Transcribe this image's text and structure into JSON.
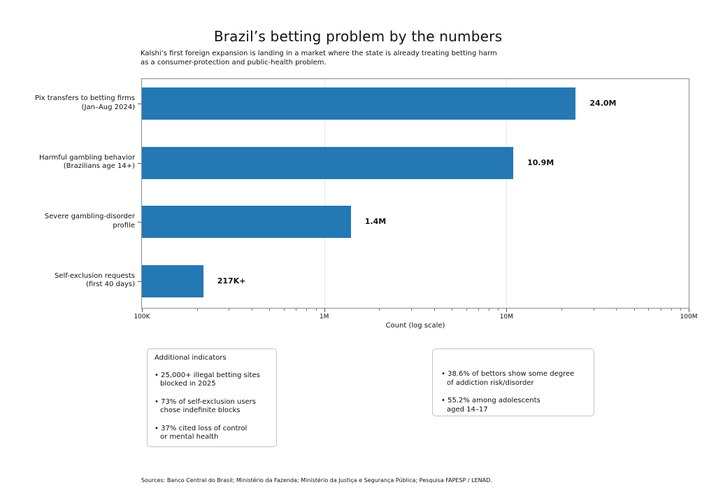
{
  "chart_data": {
    "type": "bar",
    "orientation": "horizontal",
    "x_scale": "log",
    "title": "Brazil’s betting problem by the numbers",
    "subtitle_lines": [
      "Kalshi’s first foreign expansion is landing in a market where the state is already treating betting harm",
      "as a consumer-protection and public-health problem."
    ],
    "xlabel": "Count (log scale)",
    "xlim": [
      100000,
      100000000
    ],
    "x_tick_values": [
      100000,
      1000000,
      10000000,
      100000000
    ],
    "x_tick_labels": [
      "100K",
      "1M",
      "10M",
      "100M"
    ],
    "grid": "major-x",
    "bar_color": "#2478b4",
    "categories": [
      "Pix transfers to betting firms (Jan–Aug 2024)",
      "Harmful gambling behavior (Brazilians age 14+)",
      "Severe gambling-disorder profile",
      "Self-exclusion requests (first 40 days)"
    ],
    "category_lines": [
      [
        "Pix transfers to betting firms",
        "(Jan–Aug 2024)"
      ],
      [
        "Harmful gambling behavior",
        "(Brazilians age 14+)"
      ],
      [
        "Severe gambling-disorder",
        "profile"
      ],
      [
        "Self-exclusion requests",
        "(first 40 days)"
      ]
    ],
    "values": [
      24000000,
      10900000,
      1400000,
      217000
    ],
    "value_labels": [
      "24.0M",
      "10.9M",
      "1.4M",
      "217K+"
    ]
  },
  "annotations": {
    "left_box": {
      "title": "Additional indicators",
      "bullets": [
        {
          "lines": [
            "25,000+ illegal betting sites",
            "blocked in 2025"
          ]
        },
        {
          "lines": [
            "73% of self-exclusion users",
            "chose indefinite blocks"
          ]
        },
        {
          "lines": [
            "37% cited loss of control",
            "or mental health"
          ]
        }
      ]
    },
    "right_box": {
      "bullets": [
        {
          "lines": [
            "38.6% of bettors show some degree",
            "of addiction risk/disorder"
          ]
        },
        {
          "lines": [
            "55.2% among adolescents",
            "aged 14–17"
          ]
        }
      ]
    }
  },
  "footer": {
    "sources": "Sources: Banco Central do Brasil; Ministério da Fazenda; Ministério da Justiça e Segurança Pública; Pesquisa FAPESP / LENAD."
  }
}
